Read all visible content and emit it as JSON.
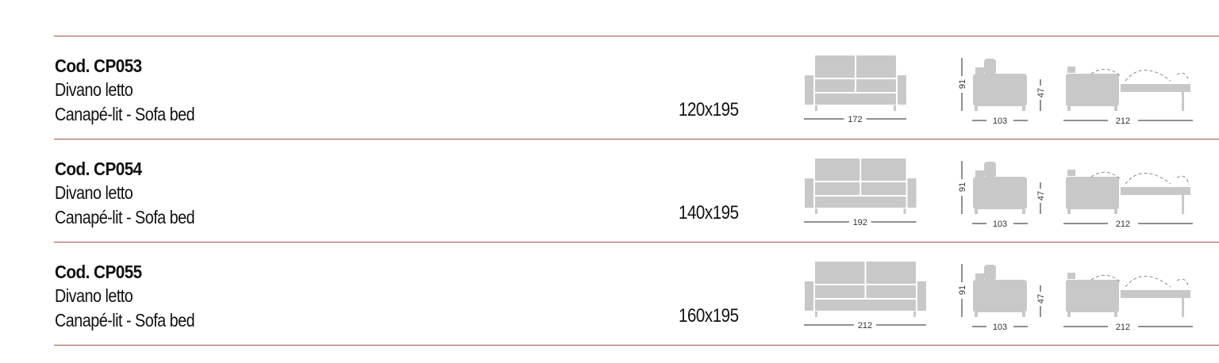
{
  "colors": {
    "rule": "#a5504c",
    "drawing_fill": "#c8c8c8"
  },
  "products": [
    {
      "code": "Cod. CP053",
      "name": "Divano letto",
      "subtitle": "Canapé-lit - Sofa bed",
      "bed_size": "120x195",
      "width": "172",
      "depth": "103",
      "height": "91",
      "seat_height": "47",
      "open_length": "212"
    },
    {
      "code": "Cod. CP054",
      "name": "Divano letto",
      "subtitle": "Canapé-lit - Sofa bed",
      "bed_size": "140x195",
      "width": "192",
      "depth": "103",
      "height": "91",
      "seat_height": "47",
      "open_length": "212"
    },
    {
      "code": "Cod. CP055",
      "name": "Divano letto",
      "subtitle": "Canapé-lit - Sofa bed",
      "bed_size": "160x195",
      "width": "212",
      "depth": "103",
      "height": "91",
      "seat_height": "47",
      "open_length": "212"
    }
  ]
}
